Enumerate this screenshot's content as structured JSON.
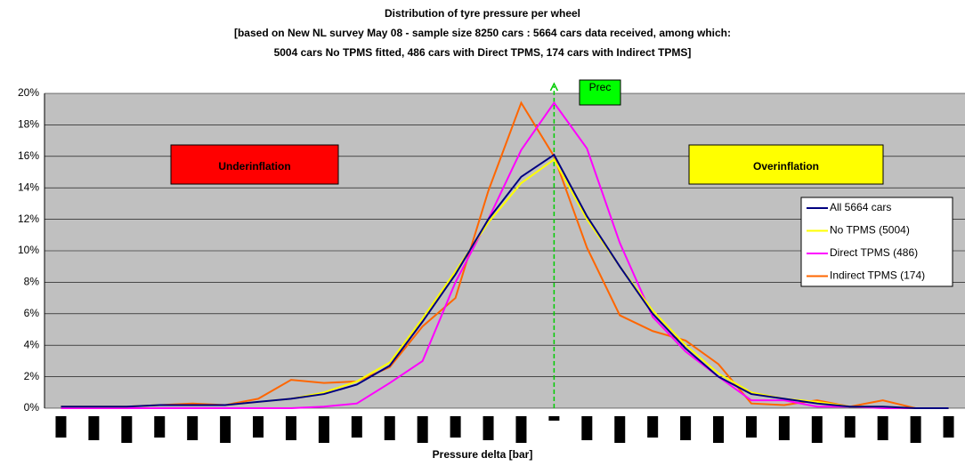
{
  "chart_data": {
    "type": "line",
    "title": [
      "Distribution of tyre pressure per wheel",
      "[based on New NL survey May 08 - sample size 8250 cars : 5664 cars data received, among which:",
      "5004 cars No TPMS fitted, 486 cars with Direct TPMS, 174 cars with Indirect TPMS]"
    ],
    "x_label": "Pressure delta [bar]",
    "categories": [
      null,
      null,
      null,
      null,
      null,
      null,
      null,
      null,
      null,
      null,
      null,
      null,
      null,
      null,
      null,
      null,
      null,
      null,
      null,
      null,
      null,
      null,
      null,
      null,
      null,
      null,
      null,
      null
    ],
    "series": [
      {
        "name": "All 5664 cars",
        "color": "#000080",
        "values": [
          0.1,
          0.1,
          0.1,
          0.2,
          0.2,
          0.2,
          0.4,
          0.6,
          0.9,
          1.5,
          2.7,
          5.5,
          8.5,
          12,
          14.7,
          16.1,
          12.2,
          9,
          6,
          3.8,
          2,
          0.9,
          0.6,
          0.3,
          0.1,
          0.1,
          0,
          0
        ]
      },
      {
        "name": "No TPMS (5004)",
        "color": "#ffff00",
        "values": [
          0.1,
          0.1,
          0.1,
          0.2,
          0.2,
          0.2,
          0.4,
          0.6,
          1,
          1.7,
          2.9,
          5.7,
          8.7,
          11.8,
          14.3,
          15.8,
          12,
          9,
          6.2,
          4,
          2.2,
          1,
          0.6,
          0.4,
          0.1,
          0.1,
          0,
          0
        ]
      },
      {
        "name": "Direct TPMS (486)",
        "color": "#ff00ff",
        "values": [
          0,
          0,
          0,
          0,
          0,
          0,
          0,
          0,
          0.1,
          0.3,
          1.6,
          3,
          8,
          12,
          16.4,
          19.4,
          16.5,
          10.5,
          5.8,
          3.6,
          2,
          0.5,
          0.5,
          0.1,
          0.1,
          0,
          0,
          0
        ]
      },
      {
        "name": "Indirect TPMS (174)",
        "color": "#ff6600",
        "values": [
          0.1,
          0.1,
          0.1,
          0.2,
          0.3,
          0.2,
          0.6,
          1.8,
          1.6,
          1.7,
          2.6,
          5.2,
          7,
          13.8,
          19.4,
          16,
          10.2,
          5.9,
          4.9,
          4.3,
          2.8,
          0.3,
          0.2,
          0.5,
          0.1,
          0.5,
          0,
          0
        ]
      }
    ],
    "ylim": [
      0,
      20
    ],
    "yticks": [
      {
        "value": 0,
        "label": "0%"
      },
      {
        "value": 2,
        "label": "2%"
      },
      {
        "value": 4,
        "label": "4%"
      },
      {
        "value": 6,
        "label": "6%"
      },
      {
        "value": 8,
        "label": "8%"
      },
      {
        "value": 10,
        "label": "10%"
      },
      {
        "value": 12,
        "label": "12%"
      },
      {
        "value": 14,
        "label": "14%"
      },
      {
        "value": 16,
        "label": "16%"
      },
      {
        "value": 18,
        "label": "18%"
      },
      {
        "value": 20,
        "label": "20%"
      }
    ],
    "grid": true,
    "plot_color": "#c0c0c0",
    "legend": "right",
    "annotations": [
      {
        "text": "Underinflation",
        "color": "#ff0000"
      },
      {
        "text": "Overinflation",
        "color": "#ffff00"
      },
      {
        "text": "Prec",
        "color": "#00ff00"
      }
    ]
  }
}
